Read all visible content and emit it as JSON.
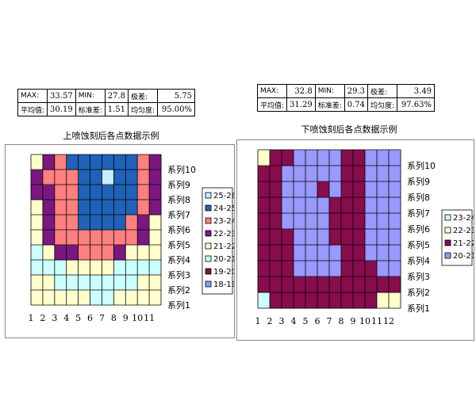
{
  "left": {
    "stats": [
      {
        "label": "MAX:",
        "value": "33.57"
      },
      {
        "label": "MIN:",
        "value": "27.8"
      },
      {
        "label": "极差:",
        "value": "5.75"
      },
      {
        "label": "平均值:",
        "value": "30.19"
      },
      {
        "label": "标准差:",
        "value": "1.51"
      },
      {
        "label": "均匀度:",
        "value": "95.00%"
      }
    ],
    "caption": "上喷蚀刻后各点数据示例"
  },
  "right": {
    "stats": [
      {
        "label": "MAX:",
        "value": "32.8"
      },
      {
        "label": "MIN:",
        "value": "29.3"
      },
      {
        "label": "极差:",
        "value": "3.49"
      },
      {
        "label": "平均值:",
        "value": "31.29"
      },
      {
        "label": "标准差:",
        "value": "0.74"
      },
      {
        "label": "均匀度:",
        "value": "97.63%"
      }
    ],
    "caption": "下喷蚀刻后各点数据示例"
  },
  "chart_data": [
    {
      "type": "heatmap",
      "title": "",
      "x": [
        "1",
        "2",
        "3",
        "4",
        "5",
        "6",
        "7",
        "8",
        "9",
        "10",
        "11"
      ],
      "series": [
        "系列1",
        "系列2",
        "系列3",
        "系列4",
        "系列5",
        "系列6",
        "系列7",
        "系列8",
        "系列9",
        "系列10"
      ],
      "legend": [
        {
          "label": "25-26",
          "color": "#c8ecff"
        },
        {
          "label": "24-25",
          "color": "#1f62b8"
        },
        {
          "label": "23-24",
          "color": "#ff8080"
        },
        {
          "label": "22-23",
          "color": "#7a1880"
        },
        {
          "label": "21-22",
          "color": "#ffffcc"
        },
        {
          "label": "20-21",
          "color": "#ccffff"
        },
        {
          "label": "19-20",
          "color": "#870d4d"
        },
        {
          "label": "18-19",
          "color": "#9999ff"
        }
      ],
      "legend_position": "right",
      "grid": true,
      "values": [
        [
          21,
          21,
          21,
          21,
          21,
          20,
          20,
          21,
          21,
          21,
          21
        ],
        [
          21,
          21,
          20,
          20,
          20,
          20,
          20,
          20,
          20,
          21,
          21
        ],
        [
          20,
          20,
          20,
          21,
          21,
          21,
          21,
          20,
          20,
          20,
          20
        ],
        [
          20,
          21,
          22,
          22,
          23,
          23,
          23,
          22,
          21,
          21,
          21
        ],
        [
          21,
          22,
          23,
          23,
          23,
          23,
          23,
          23,
          23,
          22,
          21
        ],
        [
          21,
          22,
          23,
          23,
          24,
          24,
          24,
          24,
          23,
          22,
          21
        ],
        [
          21,
          22,
          23,
          23,
          24,
          24,
          24,
          24,
          24,
          23,
          22
        ],
        [
          22,
          22,
          23,
          23,
          24,
          24,
          24,
          24,
          24,
          23,
          22
        ],
        [
          22,
          23,
          23,
          23,
          24,
          24,
          25,
          24,
          24,
          23,
          22
        ],
        [
          21,
          22,
          23,
          24,
          24,
          24,
          24,
          24,
          24,
          23,
          22
        ]
      ]
    },
    {
      "type": "heatmap",
      "title": "",
      "x": [
        "1",
        "2",
        "3",
        "4",
        "5",
        "6",
        "7",
        "8",
        "9",
        "10",
        "11",
        "12"
      ],
      "series": [
        "系列1",
        "系列2",
        "系列3",
        "系列4",
        "系列5",
        "系列6",
        "系列7",
        "系列8",
        "系列9",
        "系列10"
      ],
      "legend": [
        {
          "label": "23-24",
          "color": "#ccffff"
        },
        {
          "label": "22-23",
          "color": "#ffffcc"
        },
        {
          "label": "21-22",
          "color": "#870d4d"
        },
        {
          "label": "20-21",
          "color": "#9999ff"
        }
      ],
      "legend_position": "right",
      "grid": true,
      "values": [
        [
          23,
          21,
          21,
          21,
          21,
          21,
          21,
          21,
          21,
          21,
          22,
          22
        ],
        [
          21,
          21,
          21,
          21,
          21,
          21,
          21,
          21,
          21,
          21,
          21,
          21
        ],
        [
          21,
          21,
          21,
          20,
          20,
          20,
          20,
          21,
          21,
          21,
          20,
          20
        ],
        [
          21,
          21,
          21,
          20,
          20,
          20,
          20,
          21,
          21,
          20,
          20,
          20
        ],
        [
          21,
          21,
          21,
          20,
          20,
          20,
          21,
          21,
          21,
          20,
          20,
          20
        ],
        [
          21,
          21,
          20,
          20,
          20,
          20,
          21,
          21,
          21,
          20,
          20,
          20
        ],
        [
          21,
          21,
          20,
          20,
          20,
          20,
          21,
          21,
          21,
          20,
          20,
          20
        ],
        [
          21,
          21,
          20,
          20,
          20,
          21,
          20,
          21,
          21,
          20,
          20,
          20
        ],
        [
          21,
          21,
          20,
          20,
          20,
          20,
          20,
          21,
          21,
          20,
          20,
          20
        ],
        [
          22,
          21,
          21,
          20,
          20,
          20,
          20,
          21,
          21,
          20,
          20,
          20
        ]
      ]
    }
  ]
}
